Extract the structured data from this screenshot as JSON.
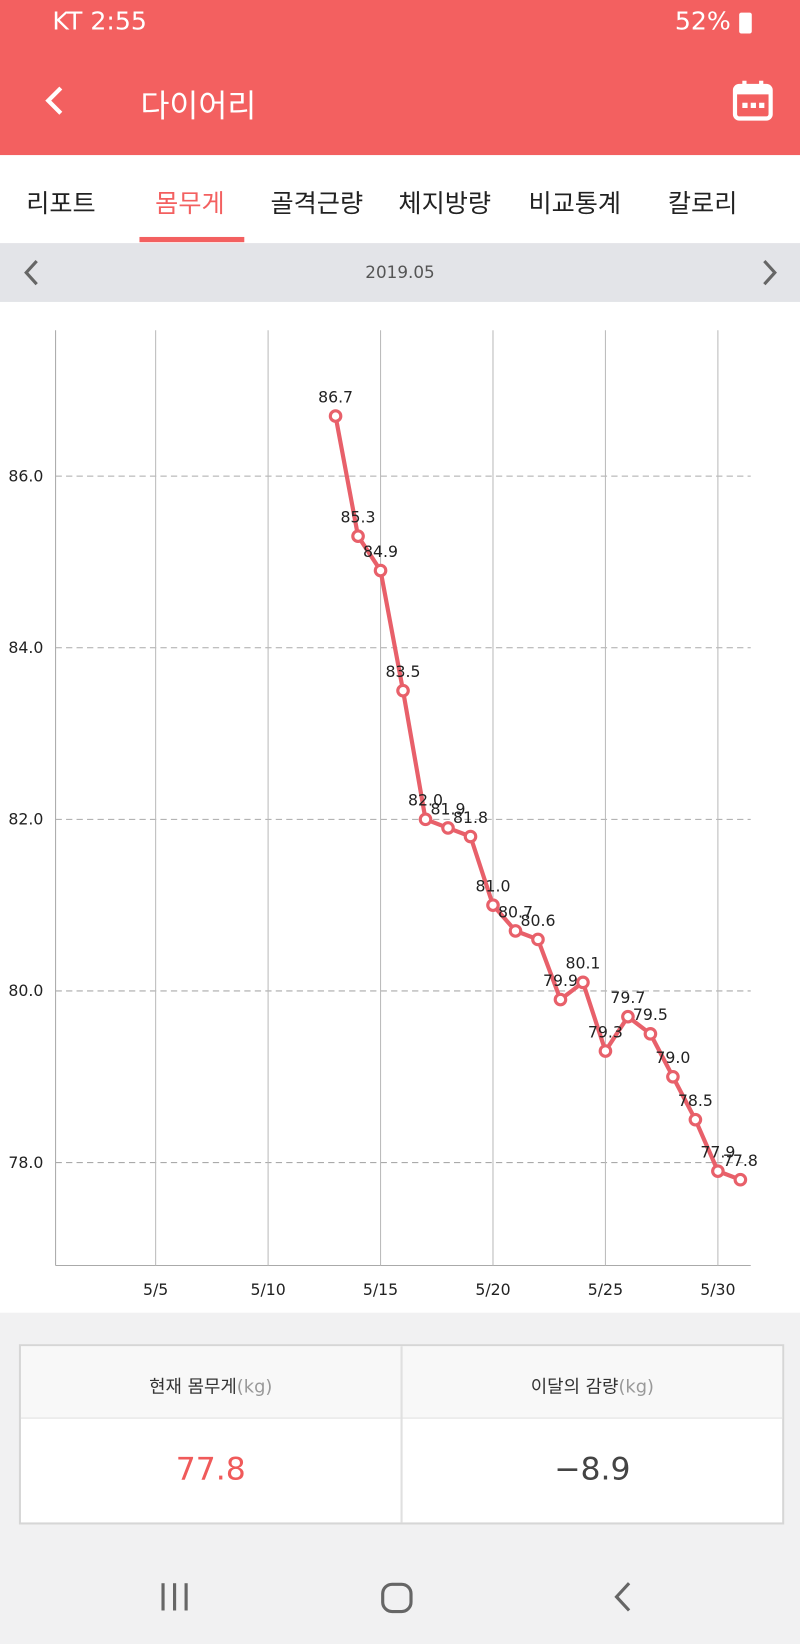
{
  "status_bar": {
    "left": "KT 2:55",
    "battery": "52%"
  },
  "header": {
    "title": "다이어리"
  },
  "tabs": [
    "리포트",
    "몸무게",
    "골격근량",
    "체지방량",
    "비교통계",
    "칼로리"
  ],
  "period": "2019.05",
  "chart_data": {
    "type": "line",
    "color": "#e8606a",
    "x": [
      13,
      14,
      15,
      16,
      17,
      18,
      19,
      20,
      21,
      22,
      23,
      24,
      25,
      26,
      27,
      28,
      29,
      30,
      31
    ],
    "values": [
      86.7,
      85.3,
      84.9,
      83.5,
      82.0,
      81.9,
      81.8,
      81.0,
      80.7,
      80.6,
      79.9,
      80.1,
      79.3,
      79.7,
      79.5,
      79.0,
      78.5,
      77.9,
      77.8
    ],
    "value_labels": [
      "86.7",
      "85.3",
      "84.9",
      "83.5",
      "82.0",
      "81.9",
      "81.8",
      "81.0",
      "80.7",
      "80.6",
      "79.9",
      "80.1",
      "79.3",
      "79.7",
      "79.5",
      "79.0",
      "78.5",
      "77.9",
      "77.8"
    ],
    "xlim": [
      0.55,
      31.46
    ],
    "xticks": [
      {
        "value": 5,
        "label": "5/5"
      },
      {
        "value": 10,
        "label": "5/10"
      },
      {
        "value": 15,
        "label": "5/15"
      },
      {
        "value": 20,
        "label": "5/20"
      },
      {
        "value": 25,
        "label": "5/25"
      },
      {
        "value": 30,
        "label": "5/30"
      }
    ],
    "ylim": [
      76.8,
      87.7
    ],
    "yticks": [
      {
        "value": 78,
        "label": "78.0"
      },
      {
        "value": 80,
        "label": "80.0"
      },
      {
        "value": 82,
        "label": "82.0"
      },
      {
        "value": 84,
        "label": "84.0"
      },
      {
        "value": 86,
        "label": "86.0"
      }
    ],
    "grid": true
  },
  "summary": {
    "headers": [
      {
        "label": "현재 몸무게",
        "unit": "(kg)"
      },
      {
        "label": "이달의 감량",
        "unit": "(kg)"
      }
    ],
    "values": [
      "77.8",
      "−8.9"
    ]
  }
}
